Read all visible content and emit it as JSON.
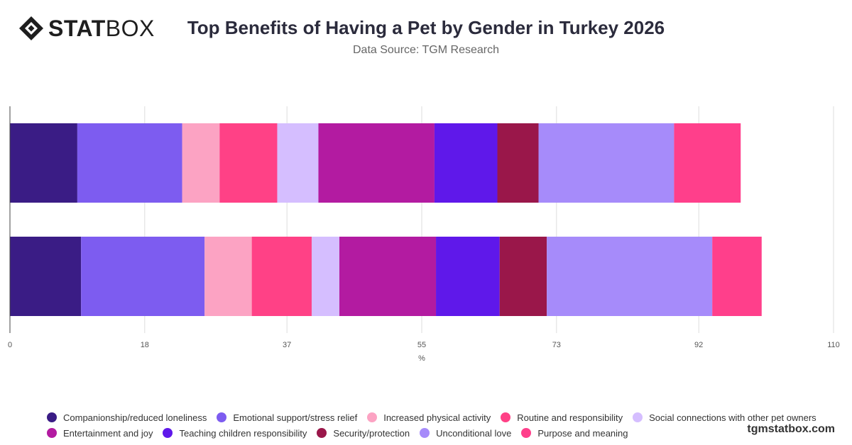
{
  "brand": {
    "logo_bold": "STAT",
    "logo_light": "BOX",
    "site": "tgmstatbox.com"
  },
  "title": "Top Benefits of Having a Pet by Gender in Turkey 2026",
  "subtitle": "Data Source: TGM Research",
  "chart_data": {
    "type": "bar",
    "orientation": "horizontal",
    "stacked": true,
    "categories": [
      "",
      ""
    ],
    "xlabel": "%",
    "xlim": [
      0,
      110
    ],
    "xticks": [
      0,
      18,
      37,
      55,
      73,
      92,
      110
    ],
    "grid": true,
    "legend_position": "bottom",
    "series": [
      {
        "name": "Companionship/reduced loneliness",
        "color": "#3a1c85",
        "values": [
          9,
          9.5
        ]
      },
      {
        "name": "Emotional support/stress relief",
        "color": "#7d5cf0",
        "values": [
          14,
          16.5
        ]
      },
      {
        "name": "Increased physical activity",
        "color": "#fca3c3",
        "values": [
          5,
          6.3
        ]
      },
      {
        "name": "Routine and responsibility",
        "color": "#ff4186",
        "values": [
          7.7,
          8
        ]
      },
      {
        "name": "Social connections with other pet owners",
        "color": "#d5beff",
        "values": [
          5.5,
          3.7
        ]
      },
      {
        "name": "Entertainment and joy",
        "color": "#b31ba1",
        "values": [
          15.5,
          12.9
        ]
      },
      {
        "name": "Teaching children responsibility",
        "color": "#5f18ea",
        "values": [
          8.4,
          8.5
        ]
      },
      {
        "name": "Security/protection",
        "color": "#9a174a",
        "values": [
          5.5,
          6.3
        ]
      },
      {
        "name": "Unconditional love",
        "color": "#a68bfa",
        "values": [
          18.1,
          22.1
        ]
      },
      {
        "name": "Purpose and meaning",
        "color": "#ff3f8b",
        "values": [
          8.9,
          6.6
        ]
      }
    ]
  }
}
